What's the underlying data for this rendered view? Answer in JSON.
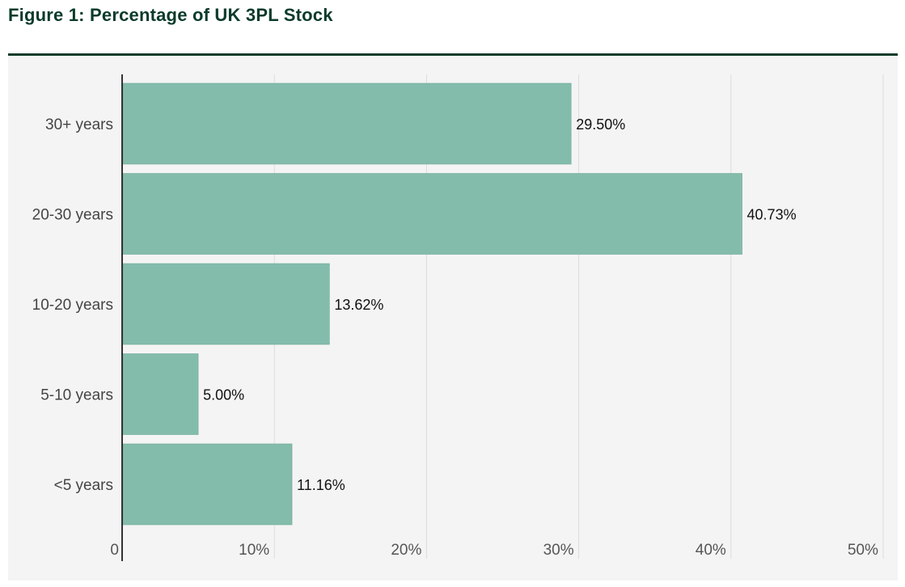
{
  "header": {
    "title": "Figure 1: Percentage of UK 3PL Stock"
  },
  "chart_data": {
    "type": "bar",
    "orientation": "horizontal",
    "title": "Figure 1: Percentage of UK 3PL Stock",
    "xlabel": "",
    "ylabel": "",
    "categories": [
      "30+ years",
      "20-30 years",
      "10-20 years",
      "5-10 years",
      "<5 years"
    ],
    "values": [
      29.5,
      40.73,
      13.62,
      5.0,
      11.16
    ],
    "value_labels": [
      "29.50%",
      "40.73%",
      "13.62%",
      "5.00%",
      "11.16%"
    ],
    "xlim": [
      0,
      50
    ],
    "x_ticks": [
      0,
      10,
      20,
      30,
      40,
      50
    ],
    "x_tick_labels": [
      "0",
      "10%",
      "20%",
      "30%",
      "40%",
      "50%"
    ],
    "grid": true,
    "colors": {
      "bar": "#84bcac",
      "bar_stroke": "#6da898",
      "grid": "#dcdcdc",
      "axis": "#333333",
      "title": "#0b3b2a",
      "panel_background": "#f4f4f4"
    }
  }
}
